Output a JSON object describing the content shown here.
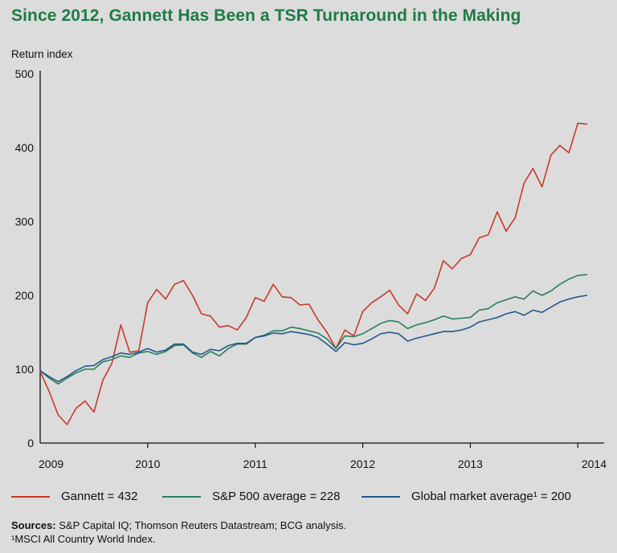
{
  "header": {
    "title": "Since 2012, Gannett Has Been a TSR Turnaround in the Making"
  },
  "chart_data": {
    "type": "line",
    "title": "Since 2012, Gannett Has Been a TSR Turnaround in the Making",
    "ylabel": "Return index",
    "xlabel": "",
    "ylim": [
      0,
      500
    ],
    "xlim": [
      2009,
      2014.17
    ],
    "y_ticks": [
      "0",
      "100",
      "200",
      "300",
      "400",
      "500"
    ],
    "x_ticks": [
      "2009",
      "2010",
      "2011",
      "2012",
      "2013",
      "2014"
    ],
    "grid": false,
    "legend_position": "bottom",
    "series": [
      {
        "name": "Gannett = 432",
        "color": "#c8392b",
        "x": [
          2009.0,
          2009.083,
          2009.167,
          2009.25,
          2009.333,
          2009.417,
          2009.5,
          2009.583,
          2009.667,
          2009.75,
          2009.833,
          2009.917,
          2010.0,
          2010.083,
          2010.167,
          2010.25,
          2010.333,
          2010.417,
          2010.5,
          2010.583,
          2010.667,
          2010.75,
          2010.833,
          2010.917,
          2011.0,
          2011.083,
          2011.167,
          2011.25,
          2011.333,
          2011.417,
          2011.5,
          2011.583,
          2011.667,
          2011.75,
          2011.833,
          2011.917,
          2012.0,
          2012.083,
          2012.167,
          2012.25,
          2012.333,
          2012.417,
          2012.5,
          2012.583,
          2012.667,
          2012.75,
          2012.833,
          2012.917,
          2013.0,
          2013.083,
          2013.167,
          2013.25,
          2013.333,
          2013.417,
          2013.5,
          2013.583,
          2013.667,
          2013.75,
          2013.833,
          2013.917,
          2014.0,
          2014.083
        ],
        "values": [
          97,
          70,
          38,
          25,
          47,
          57,
          42,
          85,
          108,
          160,
          123,
          125,
          190,
          208,
          195,
          215,
          220,
          200,
          175,
          172,
          157,
          159,
          153,
          170,
          197,
          192,
          215,
          198,
          197,
          187,
          188,
          167,
          150,
          128,
          153,
          145,
          178,
          190,
          198,
          207,
          187,
          175,
          202,
          193,
          210,
          247,
          236,
          250,
          255,
          278,
          282,
          313,
          287,
          305,
          352,
          372,
          347,
          390,
          403,
          393,
          433,
          432
        ]
      },
      {
        "name": "S&P 500 average = 228",
        "color": "#2a7f5a",
        "x": [
          2009.0,
          2009.083,
          2009.167,
          2009.25,
          2009.333,
          2009.417,
          2009.5,
          2009.583,
          2009.667,
          2009.75,
          2009.833,
          2009.917,
          2010.0,
          2010.083,
          2010.167,
          2010.25,
          2010.333,
          2010.417,
          2010.5,
          2010.583,
          2010.667,
          2010.75,
          2010.833,
          2010.917,
          2011.0,
          2011.083,
          2011.167,
          2011.25,
          2011.333,
          2011.417,
          2011.5,
          2011.583,
          2011.667,
          2011.75,
          2011.833,
          2011.917,
          2012.0,
          2012.083,
          2012.167,
          2012.25,
          2012.333,
          2012.417,
          2012.5,
          2012.583,
          2012.667,
          2012.75,
          2012.833,
          2012.917,
          2013.0,
          2013.083,
          2013.167,
          2013.25,
          2013.333,
          2013.417,
          2013.5,
          2013.583,
          2013.667,
          2013.75,
          2013.833,
          2013.917,
          2014.0,
          2014.083
        ],
        "values": [
          98,
          88,
          80,
          88,
          95,
          100,
          100,
          110,
          113,
          118,
          116,
          122,
          124,
          120,
          124,
          132,
          133,
          122,
          116,
          124,
          118,
          128,
          134,
          134,
          143,
          146,
          152,
          152,
          157,
          155,
          152,
          149,
          141,
          128,
          145,
          144,
          148,
          155,
          162,
          166,
          164,
          155,
          160,
          163,
          167,
          172,
          168,
          169,
          170,
          180,
          182,
          190,
          194,
          198,
          195,
          206,
          200,
          206,
          215,
          222,
          227,
          228
        ]
      },
      {
        "name": "Global market average¹ = 200",
        "color": "#23578e",
        "x": [
          2009.0,
          2009.083,
          2009.167,
          2009.25,
          2009.333,
          2009.417,
          2009.5,
          2009.583,
          2009.667,
          2009.75,
          2009.833,
          2009.917,
          2010.0,
          2010.083,
          2010.167,
          2010.25,
          2010.333,
          2010.417,
          2010.5,
          2010.583,
          2010.667,
          2010.75,
          2010.833,
          2010.917,
          2011.0,
          2011.083,
          2011.167,
          2011.25,
          2011.333,
          2011.417,
          2011.5,
          2011.583,
          2011.667,
          2011.75,
          2011.833,
          2011.917,
          2012.0,
          2012.083,
          2012.167,
          2012.25,
          2012.333,
          2012.417,
          2012.5,
          2012.583,
          2012.667,
          2012.75,
          2012.833,
          2012.917,
          2013.0,
          2013.083,
          2013.167,
          2013.25,
          2013.333,
          2013.417,
          2013.5,
          2013.583,
          2013.667,
          2013.75,
          2013.833,
          2013.917,
          2014.0,
          2014.083
        ],
        "values": [
          98,
          90,
          83,
          90,
          98,
          104,
          105,
          113,
          117,
          122,
          120,
          123,
          128,
          123,
          126,
          134,
          134,
          123,
          120,
          127,
          125,
          132,
          135,
          135,
          143,
          145,
          149,
          148,
          151,
          149,
          147,
          143,
          134,
          124,
          136,
          133,
          135,
          141,
          148,
          150,
          148,
          138,
          142,
          145,
          148,
          151,
          151,
          153,
          157,
          164,
          167,
          170,
          175,
          178,
          173,
          180,
          177,
          184,
          191,
          195,
          198,
          200
        ]
      }
    ]
  },
  "legend": [
    {
      "label": "Gannett = 432",
      "color": "#c8392b"
    },
    {
      "label": "S&P 500 average = 228",
      "color": "#2a7f5a"
    },
    {
      "label": "Global market average¹ = 200",
      "color": "#23578e"
    }
  ],
  "footer": {
    "sources_label": "Sources:",
    "sources_text": "S&P Capital IQ; Thomson Reuters Datastream; BCG analysis.",
    "footnote": "¹MSCI All Country World Index."
  }
}
